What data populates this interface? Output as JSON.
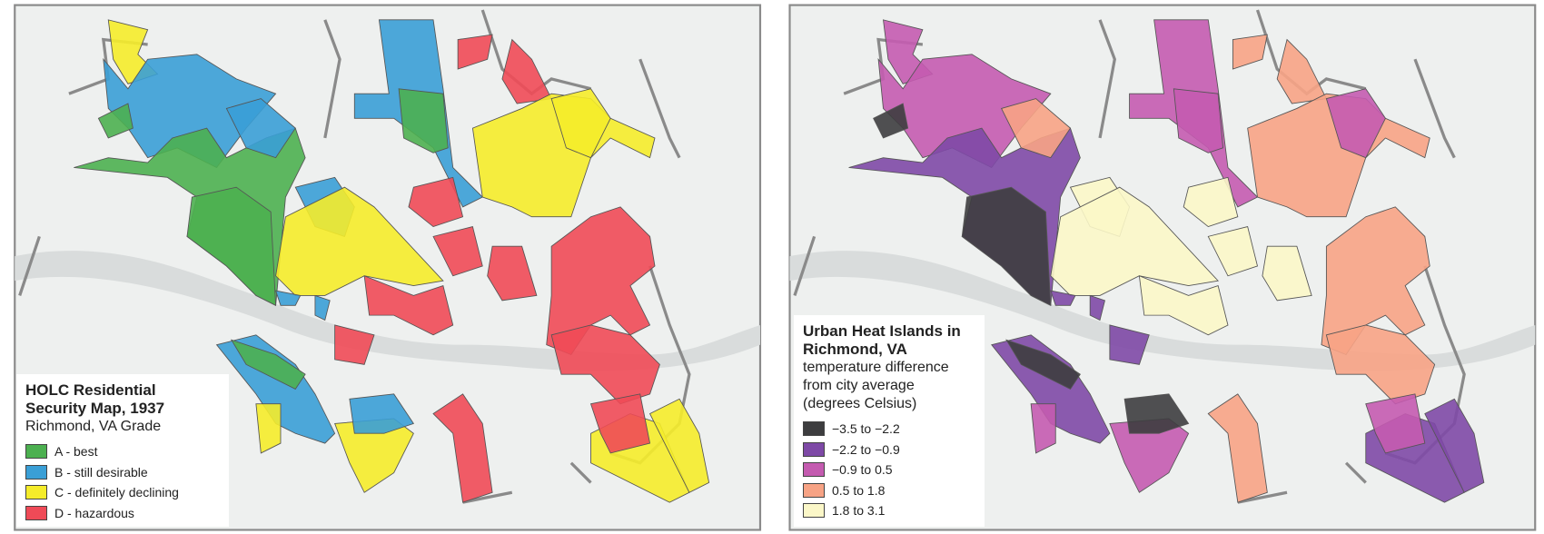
{
  "maps": [
    {
      "legend": {
        "title": "HOLC Residential Security Map, 1937",
        "subtitle": "Richmond, VA Grade",
        "items": [
          {
            "label": "A - best",
            "color": "#4cb050"
          },
          {
            "label": "B - still desirable",
            "color": "#3a9fd6"
          },
          {
            "label": "C - definitely declining",
            "color": "#f5ec2a"
          },
          {
            "label": "D - hazardous",
            "color": "#ef4a57"
          }
        ]
      }
    },
    {
      "legend": {
        "title": "Urban Heat Islands in Richmond, VA",
        "subtitle": "temperature difference from city average (degrees Celsius)",
        "items": [
          {
            "label": "−3.5 to −2.2",
            "color": "#3d3d3f"
          },
          {
            "label": "−2.2 to −0.9",
            "color": "#7e49a6"
          },
          {
            "label": "−0.9 to 0.5",
            "color": "#c45bb0"
          },
          {
            "label": "0.5 to 1.8",
            "color": "#f7a385"
          },
          {
            "label": "1.8 to 3.1",
            "color": "#fbf7c8"
          }
        ]
      }
    }
  ]
}
